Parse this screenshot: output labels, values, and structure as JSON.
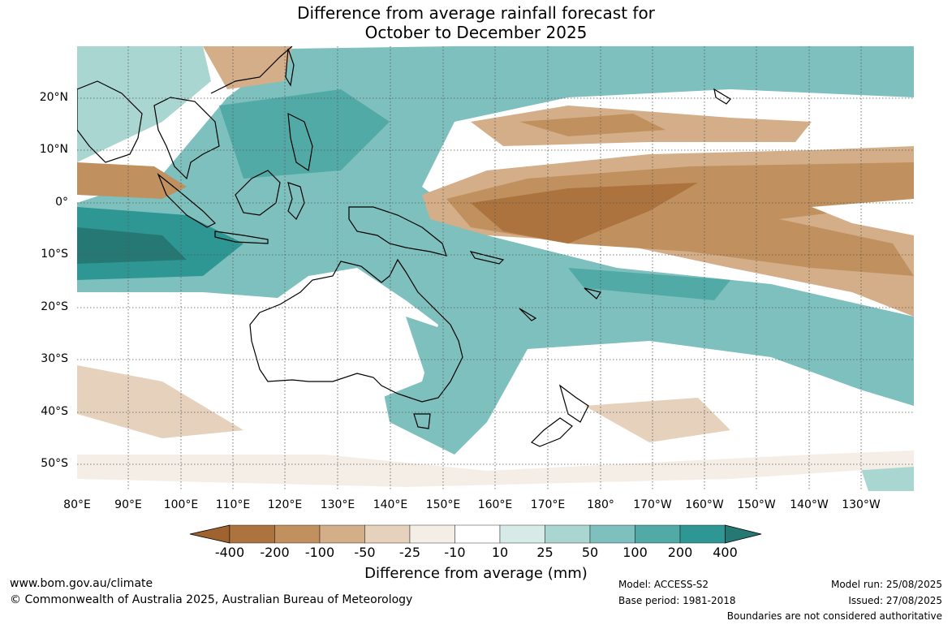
{
  "title": {
    "line1": "Difference from average rainfall forecast for",
    "line2": "October to December 2025"
  },
  "axes": {
    "lon_ticks": [
      "80°E",
      "90°E",
      "100°E",
      "110°E",
      "120°E",
      "130°E",
      "140°E",
      "150°E",
      "160°E",
      "170°E",
      "180°",
      "170°W",
      "160°W",
      "150°W",
      "140°W",
      "130°W"
    ],
    "lat_ticks": [
      "20°N",
      "10°N",
      "0°",
      "10°S",
      "20°S",
      "30°S",
      "40°S",
      "50°S"
    ]
  },
  "colorbar": {
    "title": "Difference from average (mm)",
    "tick_labels": [
      "-400",
      "-200",
      "-100",
      "-50",
      "-25",
      "-10",
      "10",
      "25",
      "50",
      "100",
      "200",
      "400"
    ],
    "colors": [
      "#a0622e",
      "#ac733f",
      "#c0915f",
      "#d3ae88",
      "#e6d1bd",
      "#f4eee6",
      "#ffffff",
      "#d6eae7",
      "#aad6d2",
      "#7dc0bd",
      "#52aaa7",
      "#2e9693",
      "#267875"
    ]
  },
  "footer": {
    "website": "www.bom.gov.au/climate",
    "copyright": "© Commonwealth of Australia 2025, Australian Bureau of Meteorology",
    "model": "Model: ACCESS-S2",
    "base_period": "Base period: 1981-2018",
    "model_run": "Model run: 25/08/2025",
    "issued": "Issued: 27/08/2025",
    "disclaimer": "Boundaries are not considered authoritative"
  }
}
